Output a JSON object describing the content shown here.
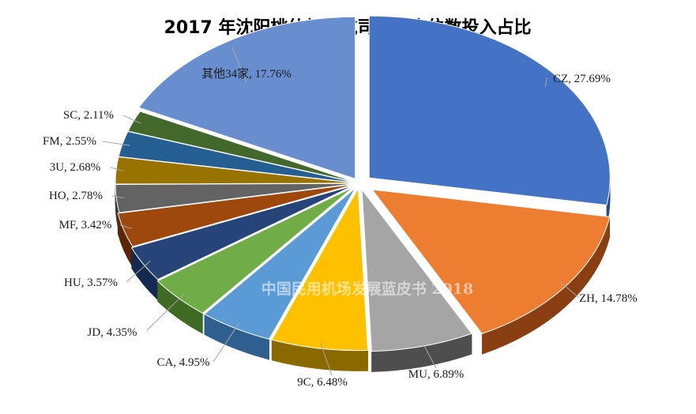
{
  "chart_data": {
    "type": "pie",
    "title": "2017 年沈阳桃仙机场航司可用座位数投入占比",
    "watermark": "中国民用机场发展蓝皮书 2018",
    "label_format": "{name}, {value}%",
    "slices": [
      {
        "name": "CZ",
        "value": 27.69,
        "color": "#4472C4",
        "dark": "#2A4A82"
      },
      {
        "name": "ZH",
        "value": 14.78,
        "color": "#ED7D31",
        "dark": "#8A3F12"
      },
      {
        "name": "MU",
        "value": 6.89,
        "color": "#A5A5A5",
        "dark": "#4E4E4E"
      },
      {
        "name": "9C",
        "value": 6.48,
        "color": "#FFC000",
        "dark": "#8A6A00"
      },
      {
        "name": "CA",
        "value": 4.95,
        "color": "#5B9BD5",
        "dark": "#2E5F8E"
      },
      {
        "name": "JD",
        "value": 4.35,
        "color": "#70AD47",
        "dark": "#3E6A24"
      },
      {
        "name": "HU",
        "value": 3.57,
        "color": "#264478",
        "dark": "#152A50"
      },
      {
        "name": "MF",
        "value": 3.42,
        "color": "#9E480E",
        "dark": "#5A2606"
      },
      {
        "name": "HO",
        "value": 2.78,
        "color": "#636363",
        "dark": "#3A3A3A"
      },
      {
        "name": "3U",
        "value": 2.68,
        "color": "#997300",
        "dark": "#5A4400"
      },
      {
        "name": "FM",
        "value": 2.55,
        "color": "#255E91",
        "dark": "#143858"
      },
      {
        "name": "SC",
        "value": 2.11,
        "color": "#43682B",
        "dark": "#253C17"
      },
      {
        "name": "其他34家",
        "value": 17.76,
        "color": "#698ED0",
        "dark": "#3E5C91"
      }
    ]
  }
}
